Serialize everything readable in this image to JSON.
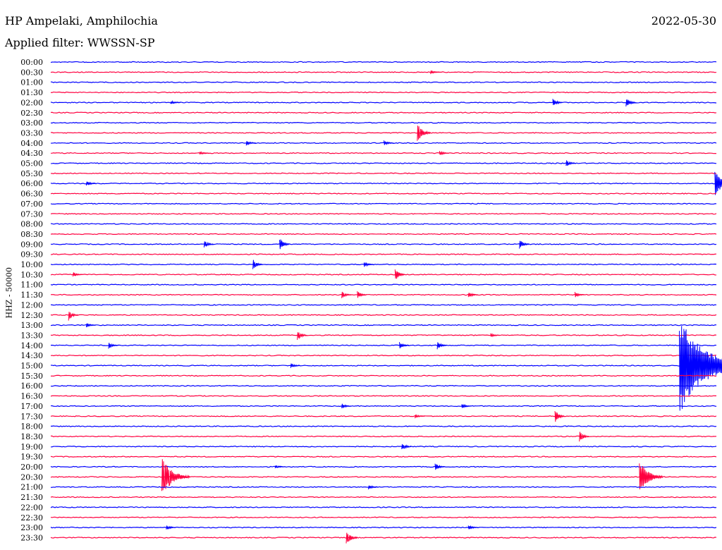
{
  "header": {
    "station": "HP Ampelaki, Amphilochia",
    "date": "2022-05-30",
    "filter": "Applied filter: WWSSN-SP"
  },
  "channel_label": "HHZ - 50000",
  "colors": {
    "odd_trace": "#0000ff",
    "even_trace": "#ff0040"
  },
  "chart_data": {
    "type": "line",
    "title": "HP Ampelaki, Amphilochia",
    "xlabel": "",
    "ylabel": "HHZ - 50000",
    "rows": [
      "00:00",
      "00:30",
      "01:00",
      "01:30",
      "02:00",
      "02:30",
      "03:00",
      "03:30",
      "04:00",
      "04:30",
      "05:00",
      "05:30",
      "06:00",
      "06:30",
      "07:00",
      "07:30",
      "08:00",
      "08:30",
      "09:00",
      "09:30",
      "10:00",
      "10:30",
      "11:00",
      "11:30",
      "12:00",
      "12:30",
      "13:00",
      "13:30",
      "14:00",
      "14:30",
      "15:00",
      "15:30",
      "16:00",
      "16:30",
      "17:00",
      "17:30",
      "18:00",
      "18:30",
      "19:00",
      "19:30",
      "20:00",
      "20:30",
      "21:00",
      "21:30",
      "22:00",
      "22:30",
      "23:00",
      "23:30"
    ],
    "row_minutes": 30,
    "events": [
      {
        "row": "00:30",
        "minute": 17.1,
        "amp": 3
      },
      {
        "row": "02:00",
        "minute": 5.4,
        "amp": 3
      },
      {
        "row": "02:00",
        "minute": 22.6,
        "amp": 7
      },
      {
        "row": "02:00",
        "minute": 25.9,
        "amp": 8
      },
      {
        "row": "03:30",
        "minute": 16.5,
        "amp": 14
      },
      {
        "row": "04:00",
        "minute": 8.8,
        "amp": 4
      },
      {
        "row": "04:00",
        "minute": 15.0,
        "amp": 4
      },
      {
        "row": "04:30",
        "minute": 6.7,
        "amp": 3
      },
      {
        "row": "04:30",
        "minute": 17.5,
        "amp": 4
      },
      {
        "row": "05:00",
        "minute": 23.2,
        "amp": 5
      },
      {
        "row": "06:00",
        "minute": 1.6,
        "amp": 4
      },
      {
        "row": "06:00",
        "minute": 29.9,
        "amp": 20
      },
      {
        "row": "09:00",
        "minute": 6.9,
        "amp": 6
      },
      {
        "row": "09:00",
        "minute": 10.3,
        "amp": 10
      },
      {
        "row": "09:00",
        "minute": 21.1,
        "amp": 8
      },
      {
        "row": "10:00",
        "minute": 9.1,
        "amp": 9
      },
      {
        "row": "10:00",
        "minute": 14.1,
        "amp": 4
      },
      {
        "row": "10:30",
        "minute": 1.0,
        "amp": 4
      },
      {
        "row": "10:30",
        "minute": 15.5,
        "amp": 10
      },
      {
        "row": "11:30",
        "minute": 13.1,
        "amp": 6
      },
      {
        "row": "11:30",
        "minute": 13.8,
        "amp": 6
      },
      {
        "row": "11:30",
        "minute": 18.8,
        "amp": 5
      },
      {
        "row": "11:30",
        "minute": 23.6,
        "amp": 4
      },
      {
        "row": "12:30",
        "minute": 0.8,
        "amp": 8
      },
      {
        "row": "13:00",
        "minute": 1.6,
        "amp": 4
      },
      {
        "row": "13:30",
        "minute": 11.1,
        "amp": 8
      },
      {
        "row": "13:30",
        "minute": 19.8,
        "amp": 3
      },
      {
        "row": "14:00",
        "minute": 2.6,
        "amp": 5
      },
      {
        "row": "14:00",
        "minute": 15.7,
        "amp": 5
      },
      {
        "row": "14:00",
        "minute": 17.4,
        "amp": 6
      },
      {
        "row": "15:00",
        "minute": 10.8,
        "amp": 4
      },
      {
        "row": "15:00",
        "minute": 28.3,
        "amp": 70
      },
      {
        "row": "17:00",
        "minute": 13.1,
        "amp": 4
      },
      {
        "row": "17:00",
        "minute": 18.5,
        "amp": 4
      },
      {
        "row": "17:30",
        "minute": 16.4,
        "amp": 3
      },
      {
        "row": "17:30",
        "minute": 22.7,
        "amp": 10
      },
      {
        "row": "18:30",
        "minute": 23.8,
        "amp": 9
      },
      {
        "row": "19:00",
        "minute": 15.8,
        "amp": 6
      },
      {
        "row": "20:00",
        "minute": 10.1,
        "amp": 3
      },
      {
        "row": "20:00",
        "minute": 17.3,
        "amp": 6
      },
      {
        "row": "20:30",
        "minute": 5.0,
        "amp": 28
      },
      {
        "row": "20:30",
        "minute": 26.5,
        "amp": 24
      },
      {
        "row": "21:00",
        "minute": 14.3,
        "amp": 4
      },
      {
        "row": "23:00",
        "minute": 5.2,
        "amp": 4
      },
      {
        "row": "23:00",
        "minute": 18.8,
        "amp": 4
      },
      {
        "row": "23:30",
        "minute": 13.3,
        "amp": 12
      }
    ]
  }
}
